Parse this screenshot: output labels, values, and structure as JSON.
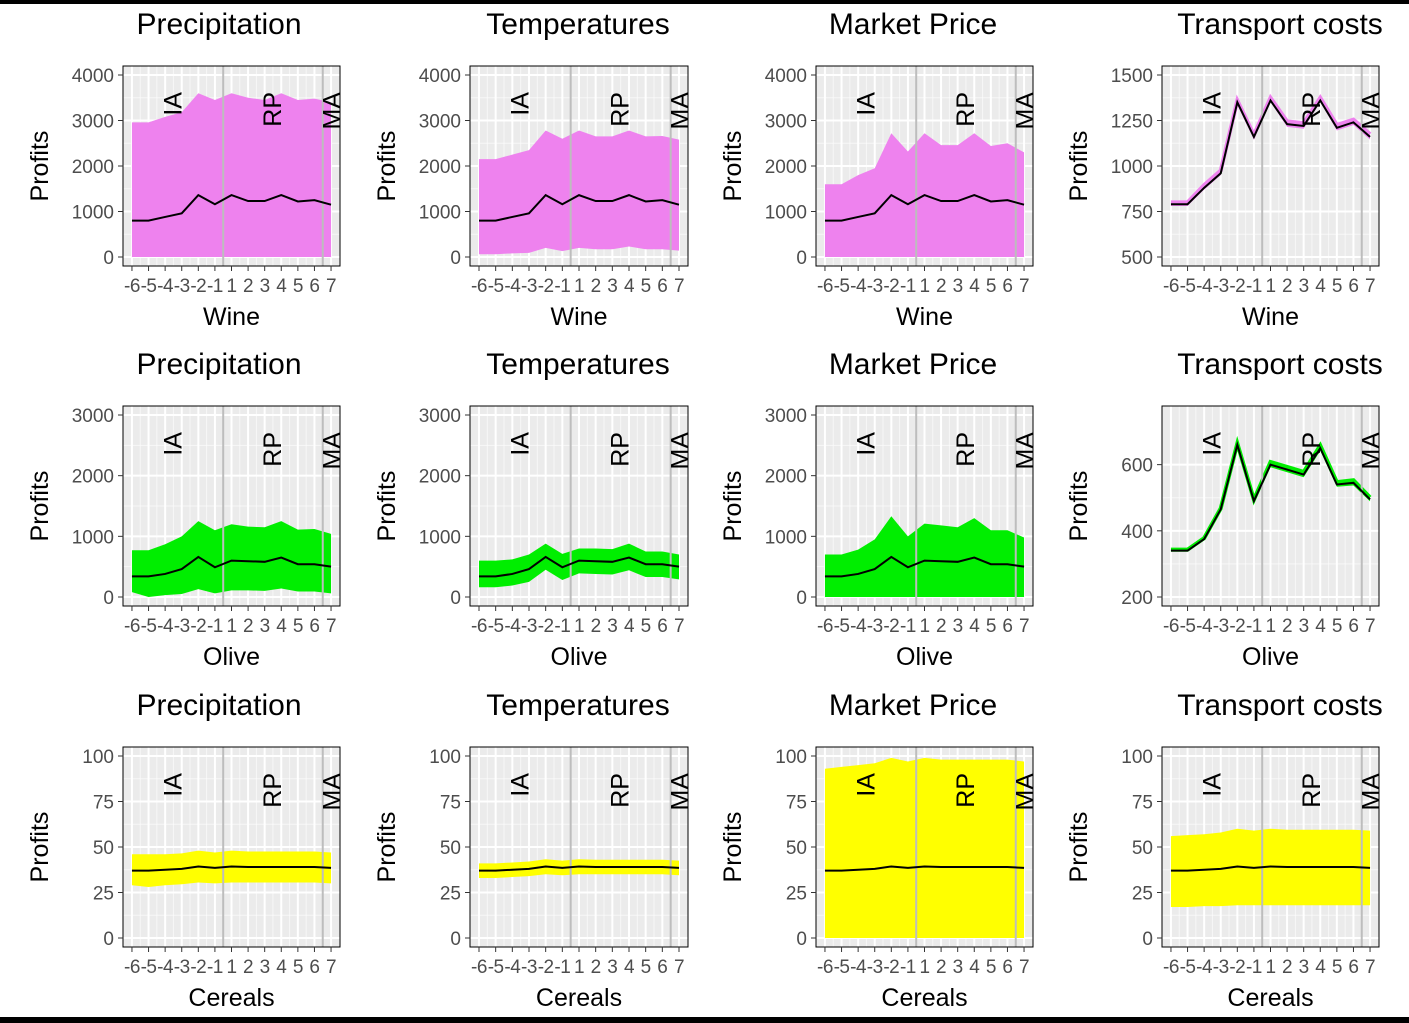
{
  "colors": {
    "panel_bg": "#ebebeb",
    "grid_major": "#ffffff",
    "period_line": "#bdbdbd",
    "frame": "#000000",
    "median_line": "#000000",
    "wine_fill": "#ee82ee",
    "olive_fill": "#00ee00",
    "cereals_fill": "#ffff00"
  },
  "x_ticks": [
    "-6",
    "-5",
    "-4",
    "-3",
    "-2",
    "-1",
    "1",
    "2",
    "3",
    "4",
    "5",
    "6",
    "7"
  ],
  "period_labels": [
    "IA",
    "RP",
    "MA"
  ],
  "chart_data": [
    {
      "type": "area",
      "title": "Precipitation",
      "xlabel": "Wine",
      "ylabel": "Profits",
      "ylim": [
        0,
        4000
      ],
      "yticks": [
        0,
        1000,
        2000,
        3000,
        4000
      ],
      "fill": "#ee82ee",
      "x": [
        -6,
        -5,
        -4,
        -3,
        -2,
        -1,
        1,
        2,
        3,
        4,
        5,
        6,
        7
      ],
      "median": [
        800,
        800,
        880,
        960,
        1360,
        1160,
        1360,
        1230,
        1230,
        1360,
        1220,
        1250,
        1150
      ],
      "lower": [
        0,
        0,
        0,
        0,
        0,
        0,
        0,
        0,
        0,
        0,
        0,
        0,
        0
      ],
      "upper": [
        2960,
        2960,
        3080,
        3180,
        3600,
        3450,
        3600,
        3500,
        3450,
        3600,
        3450,
        3480,
        3400
      ]
    },
    {
      "type": "area",
      "title": "Temperatures",
      "xlabel": "Wine",
      "ylabel": "Profits",
      "ylim": [
        0,
        4000
      ],
      "yticks": [
        0,
        1000,
        2000,
        3000,
        4000
      ],
      "fill": "#ee82ee",
      "x": [
        -6,
        -5,
        -4,
        -3,
        -2,
        -1,
        1,
        2,
        3,
        4,
        5,
        6,
        7
      ],
      "median": [
        800,
        800,
        880,
        960,
        1360,
        1160,
        1360,
        1230,
        1230,
        1360,
        1220,
        1250,
        1150
      ],
      "lower": [
        60,
        60,
        80,
        90,
        200,
        130,
        200,
        170,
        170,
        230,
        170,
        170,
        140
      ],
      "upper": [
        2150,
        2150,
        2250,
        2350,
        2780,
        2600,
        2780,
        2650,
        2650,
        2780,
        2650,
        2660,
        2580
      ]
    },
    {
      "type": "area",
      "title": "Market Price",
      "xlabel": "Wine",
      "ylabel": "Profits",
      "ylim": [
        0,
        4000
      ],
      "yticks": [
        0,
        1000,
        2000,
        3000,
        4000
      ],
      "fill": "#ee82ee",
      "x": [
        -6,
        -5,
        -4,
        -3,
        -2,
        -1,
        1,
        2,
        3,
        4,
        5,
        6,
        7
      ],
      "median": [
        800,
        800,
        880,
        960,
        1360,
        1160,
        1360,
        1230,
        1230,
        1360,
        1220,
        1250,
        1150
      ],
      "lower": [
        0,
        0,
        0,
        0,
        0,
        0,
        0,
        0,
        0,
        0,
        0,
        0,
        0
      ],
      "upper": [
        1600,
        1600,
        1800,
        1950,
        2720,
        2320,
        2720,
        2460,
        2460,
        2720,
        2440,
        2500,
        2300
      ]
    },
    {
      "type": "area",
      "title": "Transport costs",
      "xlabel": "Wine",
      "ylabel": "Profits",
      "ylim": [
        500,
        1500
      ],
      "yticks": [
        500,
        750,
        1000,
        1250,
        1500
      ],
      "fill": "#ee82ee",
      "x": [
        -6,
        -5,
        -4,
        -3,
        -2,
        -1,
        1,
        2,
        3,
        4,
        5,
        6,
        7
      ],
      "median": [
        790,
        790,
        880,
        960,
        1350,
        1160,
        1360,
        1230,
        1220,
        1360,
        1210,
        1240,
        1160
      ],
      "lower": [
        780,
        780,
        870,
        950,
        1340,
        1150,
        1350,
        1215,
        1205,
        1350,
        1195,
        1225,
        1145
      ],
      "upper": [
        800,
        800,
        895,
        975,
        1360,
        1170,
        1375,
        1245,
        1235,
        1375,
        1225,
        1255,
        1175
      ]
    },
    {
      "type": "area",
      "title": "Precipitation",
      "xlabel": "Olive",
      "ylabel": "Profits",
      "ylim": [
        0,
        3000
      ],
      "yticks": [
        0,
        1000,
        2000,
        3000
      ],
      "fill": "#00ee00",
      "x": [
        -6,
        -5,
        -4,
        -3,
        -2,
        -1,
        1,
        2,
        3,
        4,
        5,
        6,
        7
      ],
      "median": [
        340,
        340,
        380,
        460,
        660,
        490,
        600,
        590,
        580,
        650,
        540,
        540,
        500
      ],
      "lower": [
        80,
        0,
        30,
        50,
        130,
        60,
        110,
        110,
        100,
        140,
        90,
        90,
        60
      ],
      "upper": [
        770,
        770,
        870,
        1000,
        1250,
        1100,
        1200,
        1160,
        1150,
        1250,
        1110,
        1120,
        1040
      ]
    },
    {
      "type": "area",
      "title": "Temperatures",
      "xlabel": "Olive",
      "ylabel": "Profits",
      "ylim": [
        0,
        3000
      ],
      "yticks": [
        0,
        1000,
        2000,
        3000
      ],
      "fill": "#00ee00",
      "x": [
        -6,
        -5,
        -4,
        -3,
        -2,
        -1,
        1,
        2,
        3,
        4,
        5,
        6,
        7
      ],
      "median": [
        340,
        340,
        380,
        460,
        660,
        490,
        600,
        590,
        580,
        650,
        540,
        540,
        500
      ],
      "lower": [
        160,
        160,
        190,
        250,
        450,
        280,
        390,
        380,
        370,
        440,
        330,
        330,
        290
      ],
      "upper": [
        600,
        600,
        620,
        700,
        880,
        710,
        800,
        800,
        790,
        880,
        750,
        750,
        700
      ]
    },
    {
      "type": "area",
      "title": "Market Price",
      "xlabel": "Olive",
      "ylabel": "Profits",
      "ylim": [
        0,
        3000
      ],
      "yticks": [
        0,
        1000,
        2000,
        3000
      ],
      "fill": "#00ee00",
      "x": [
        -6,
        -5,
        -4,
        -3,
        -2,
        -1,
        1,
        2,
        3,
        4,
        5,
        6,
        7
      ],
      "median": [
        340,
        340,
        380,
        460,
        660,
        490,
        600,
        590,
        580,
        650,
        540,
        540,
        500
      ],
      "lower": [
        0,
        0,
        0,
        0,
        0,
        0,
        0,
        0,
        0,
        0,
        0,
        0,
        0
      ],
      "upper": [
        700,
        700,
        780,
        950,
        1330,
        1000,
        1210,
        1180,
        1150,
        1300,
        1100,
        1100,
        980
      ]
    },
    {
      "type": "area",
      "title": "Transport costs",
      "xlabel": "Olive",
      "ylabel": "Profits",
      "ylim": [
        200,
        750
      ],
      "yticks": [
        200,
        400,
        600
      ],
      "fill": "#00ee00",
      "x": [
        -6,
        -5,
        -4,
        -3,
        -2,
        -1,
        1,
        2,
        3,
        4,
        5,
        6,
        7
      ],
      "median": [
        340,
        340,
        375,
        465,
        660,
        490,
        600,
        585,
        570,
        650,
        540,
        545,
        495
      ],
      "lower": [
        337,
        337,
        372,
        462,
        656,
        486,
        592,
        577,
        562,
        642,
        533,
        537,
        489
      ],
      "upper": [
        343,
        343,
        378,
        468,
        664,
        494,
        608,
        593,
        578,
        658,
        547,
        553,
        501
      ]
    },
    {
      "type": "area",
      "title": "Precipitation",
      "xlabel": "Cereals",
      "ylabel": "Profits",
      "ylim": [
        0,
        100
      ],
      "yticks": [
        0,
        25,
        50,
        75,
        100
      ],
      "fill": "#ffff00",
      "x": [
        -6,
        -5,
        -4,
        -3,
        -2,
        -1,
        1,
        2,
        3,
        4,
        5,
        6,
        7
      ],
      "median": [
        37,
        37,
        37.5,
        38,
        39.3,
        38.5,
        39.3,
        39,
        39,
        39,
        39,
        39,
        38.5
      ],
      "lower": [
        29,
        28,
        29,
        29.5,
        30.5,
        30,
        30.5,
        30.5,
        30.5,
        30.5,
        30.5,
        30.5,
        30
      ],
      "upper": [
        46,
        46,
        46,
        46.5,
        48,
        47,
        48,
        47.5,
        47.5,
        47.5,
        47.5,
        47.5,
        47
      ]
    },
    {
      "type": "area",
      "title": "Temperatures",
      "xlabel": "Cereals",
      "ylabel": "Profits",
      "ylim": [
        0,
        100
      ],
      "yticks": [
        0,
        25,
        50,
        75,
        100
      ],
      "fill": "#ffff00",
      "x": [
        -6,
        -5,
        -4,
        -3,
        -2,
        -1,
        1,
        2,
        3,
        4,
        5,
        6,
        7
      ],
      "median": [
        37,
        37,
        37.5,
        38,
        39.3,
        38.5,
        39.3,
        39,
        39,
        39,
        39,
        39,
        38.5
      ],
      "lower": [
        33,
        33,
        33.5,
        34,
        35,
        34.5,
        35,
        35,
        35,
        35,
        35,
        35,
        34.5
      ],
      "upper": [
        41,
        41,
        41.5,
        42,
        43.3,
        42.5,
        43.3,
        43,
        43,
        43,
        43,
        43,
        42.5
      ]
    },
    {
      "type": "area",
      "title": "Market Price",
      "xlabel": "Cereals",
      "ylabel": "Profits",
      "ylim": [
        0,
        100
      ],
      "yticks": [
        0,
        25,
        50,
        75,
        100
      ],
      "fill": "#ffff00",
      "x": [
        -6,
        -5,
        -4,
        -3,
        -2,
        -1,
        1,
        2,
        3,
        4,
        5,
        6,
        7
      ],
      "median": [
        37,
        37,
        37.5,
        38,
        39.3,
        38.5,
        39.3,
        39,
        39,
        39,
        39,
        39,
        38.5
      ],
      "lower": [
        0,
        0,
        0,
        0,
        0,
        0,
        0,
        0,
        0,
        0,
        0,
        0,
        0
      ],
      "upper": [
        93,
        94,
        95,
        96,
        99,
        97,
        99,
        98,
        98,
        98,
        98,
        98,
        97
      ]
    },
    {
      "type": "area",
      "title": "Transport costs",
      "xlabel": "Cereals",
      "ylabel": "Profits",
      "ylim": [
        0,
        100
      ],
      "yticks": [
        0,
        25,
        50,
        75,
        100
      ],
      "fill": "#ffff00",
      "x": [
        -6,
        -5,
        -4,
        -3,
        -2,
        -1,
        1,
        2,
        3,
        4,
        5,
        6,
        7
      ],
      "median": [
        37,
        37,
        37.5,
        38,
        39.3,
        38.5,
        39.3,
        39,
        39,
        39,
        39,
        39,
        38.5
      ],
      "lower": [
        17,
        17,
        17.5,
        17.5,
        18,
        18,
        18,
        18,
        18,
        18,
        18,
        18,
        18
      ],
      "upper": [
        56,
        56.5,
        57,
        58,
        60,
        59,
        60,
        59.5,
        59.5,
        59.5,
        59.5,
        59.5,
        59
      ]
    }
  ]
}
